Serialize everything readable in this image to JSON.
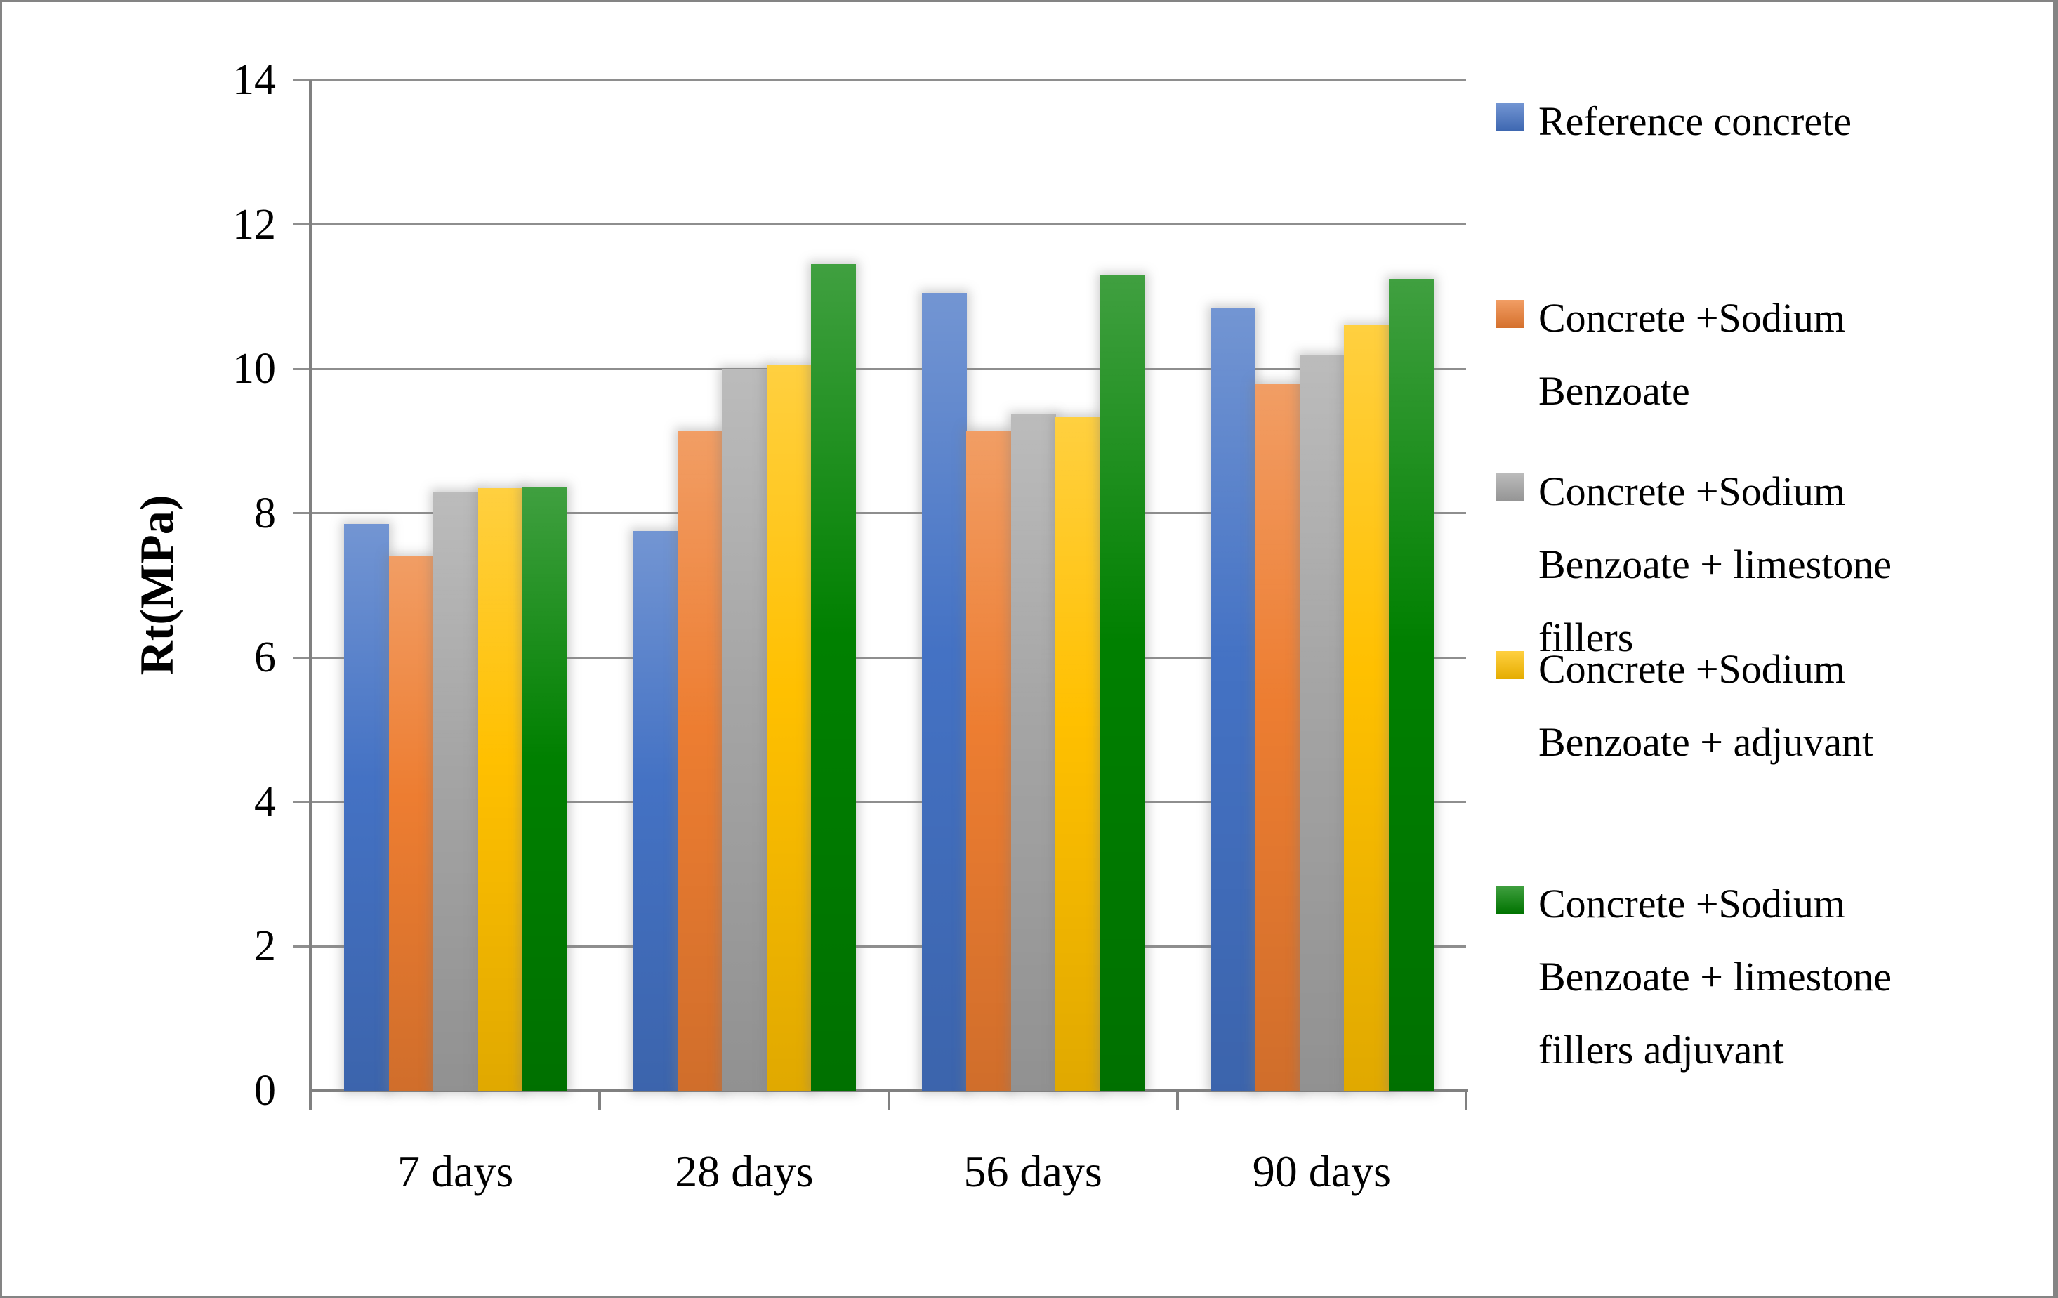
{
  "chart_data": {
    "type": "bar",
    "title": "",
    "xlabel": "",
    "ylabel": "Rt(MPa)",
    "categories": [
      "7 days",
      "28 days",
      "56 days",
      "90 days"
    ],
    "y_axis": {
      "min": 0,
      "max": 14,
      "tick_step": 2,
      "ticks": [
        0,
        2,
        4,
        6,
        8,
        10,
        12,
        14
      ]
    },
    "grid": true,
    "legend_position": "right",
    "series": [
      {
        "name": "Reference concrete",
        "legend_lines": [
          "Reference concrete"
        ],
        "color": "#4472C4",
        "values": [
          7.85,
          7.75,
          11.05,
          10.85
        ]
      },
      {
        "name": "Concrete +Sodium Benzoate",
        "legend_lines": [
          "Concrete +Sodium",
          "Benzoate"
        ],
        "color": "#ED7D31",
        "values": [
          7.4,
          9.15,
          9.15,
          9.8
        ]
      },
      {
        "name": "Concrete +Sodium Benzoate + limestone fillers",
        "legend_lines": [
          "Concrete +Sodium",
          "Benzoate + limestone",
          "fillers"
        ],
        "color": "#A5A5A5",
        "values": [
          8.3,
          10.0,
          9.37,
          10.2
        ]
      },
      {
        "name": "Concrete +Sodium Benzoate + adjuvant",
        "legend_lines": [
          "Concrete +Sodium",
          "Benzoate + adjuvant"
        ],
        "color": "#FFC000",
        "values": [
          8.35,
          10.05,
          9.34,
          10.6
        ]
      },
      {
        "name": "Concrete +Sodium Benzoate + limestone fillers adjuvant",
        "legend_lines": [
          "Concrete +Sodium",
          "Benzoate + limestone",
          "fillers adjuvant"
        ],
        "color": "#008000",
        "values": [
          8.37,
          11.45,
          11.3,
          11.25
        ]
      }
    ]
  }
}
